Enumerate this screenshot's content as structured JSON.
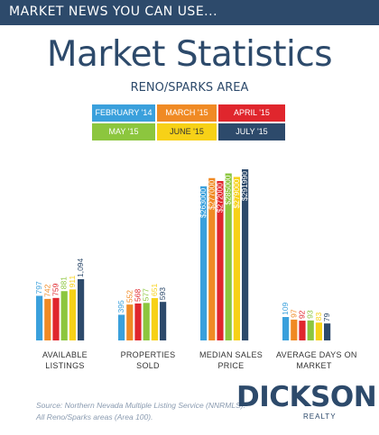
{
  "banner": {
    "text": "MARKET NEWS YOU CAN USE..."
  },
  "header": {
    "title": "Market Statistics",
    "subtitle": "RENO/SPARKS AREA"
  },
  "footer": {
    "source_line1": "Source: Northern Nevada Multiple Listing Service (NNRMLS).",
    "source_line2": "All Reno/Sparks areas (Area 100).",
    "brand": "DICKSON",
    "brand_sub": "REALTY"
  },
  "colors": {
    "navy": "#2d4a6b",
    "series": [
      "#3aa0dc",
      "#f08a24",
      "#e0262d",
      "#8cc63e",
      "#f7d117",
      "#2d4a6b"
    ]
  },
  "chart_data": {
    "type": "bar",
    "categories": [
      "AVAILABLE LISTINGS",
      "PROPERTIES SOLD",
      "MEDIAN SALES PRICE",
      "AVERAGE DAYS ON MARKET"
    ],
    "series": [
      {
        "name": "FEBRUARY '14",
        "values": [
          797,
          395,
          263000,
          109
        ],
        "labels": [
          "797",
          "395",
          "$263000",
          "109"
        ]
      },
      {
        "name": "MARCH '15",
        "values": [
          742,
          552,
          277000,
          97
        ],
        "labels": [
          "742",
          "552",
          "$277000",
          "97"
        ]
      },
      {
        "name": "APRIL '15",
        "values": [
          759,
          568,
          272000,
          92
        ],
        "labels": [
          "759",
          "568",
          "$272000",
          "92"
        ]
      },
      {
        "name": "MAY '15",
        "values": [
          881,
          577,
          285000,
          93
        ],
        "labels": [
          "881",
          "577",
          "$285000",
          "93"
        ]
      },
      {
        "name": "JUNE '15",
        "values": [
          911,
          651,
          279000,
          83
        ],
        "labels": [
          "911",
          "651",
          "$279000",
          "83"
        ]
      },
      {
        "name": "JULY '15",
        "values": [
          1094,
          593,
          291990,
          79
        ],
        "labels": [
          "1,094",
          "593",
          "$291990",
          "79"
        ]
      }
    ],
    "legend_placement": "top",
    "grid": false
  }
}
